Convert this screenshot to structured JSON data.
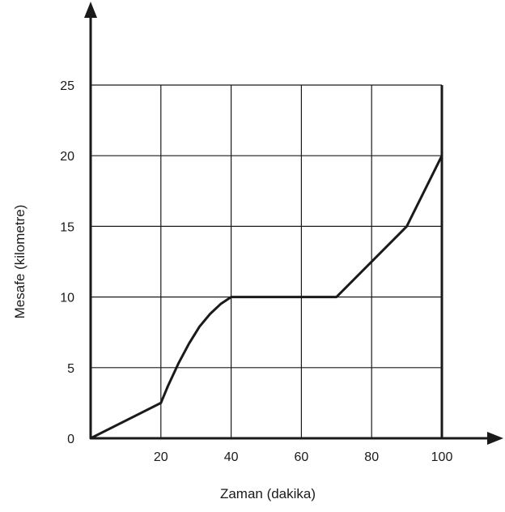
{
  "chart_data": {
    "type": "line",
    "xlabel": "Zaman (dakika)",
    "ylabel": "Mesafe (kilometre)",
    "xlim": [
      0,
      100
    ],
    "ylim": [
      0,
      25
    ],
    "x_ticks": [
      20,
      40,
      60,
      80,
      100
    ],
    "y_ticks": [
      0,
      5,
      10,
      15,
      20,
      25
    ],
    "grid": true,
    "series": [
      {
        "points": [
          [
            0,
            0
          ],
          [
            20,
            2.5
          ],
          [
            22,
            3.7
          ],
          [
            25,
            5.3
          ],
          [
            28,
            6.7
          ],
          [
            31,
            7.9
          ],
          [
            34,
            8.8
          ],
          [
            37,
            9.5
          ],
          [
            40,
            10
          ],
          [
            70,
            10
          ],
          [
            90,
            15
          ],
          [
            100,
            20
          ]
        ]
      }
    ],
    "colors": {
      "line": "#1a1a1a",
      "grid": "#1a1a1a"
    }
  }
}
